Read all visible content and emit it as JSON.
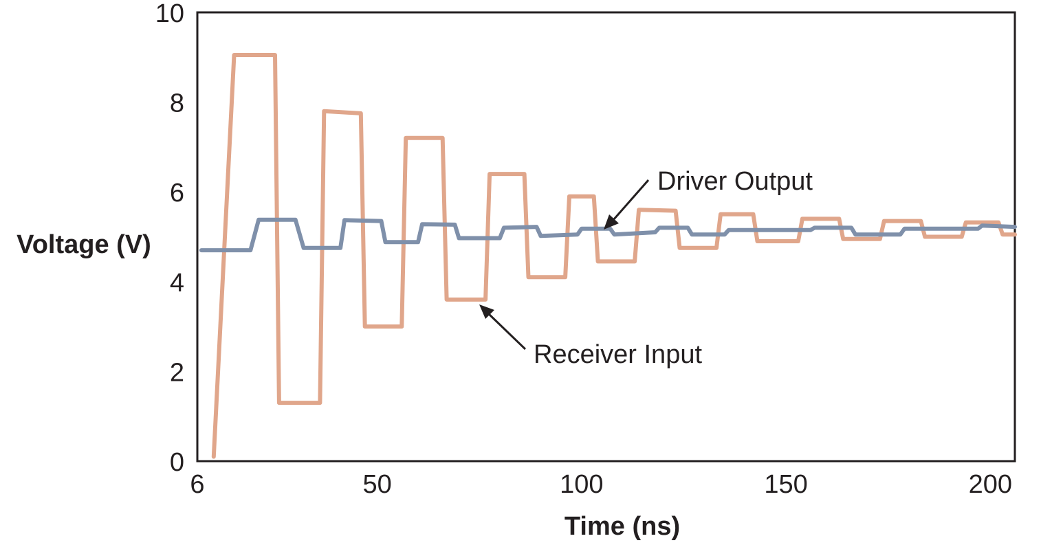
{
  "chart_data": {
    "type": "line",
    "title": "",
    "xlabel": "Time (ns)",
    "ylabel": "Voltage (V)",
    "xlim": [
      6,
      206
    ],
    "ylim": [
      0,
      10
    ],
    "x_ticks": [
      {
        "value": 6,
        "label": "6"
      },
      {
        "value": 50,
        "label": "50"
      },
      {
        "value": 100,
        "label": "100"
      },
      {
        "value": 150,
        "label": "150"
      },
      {
        "value": 200,
        "label": "200"
      }
    ],
    "y_ticks": [
      {
        "value": 0,
        "label": "0"
      },
      {
        "value": 2,
        "label": "2"
      },
      {
        "value": 4,
        "label": "4"
      },
      {
        "value": 6,
        "label": "6"
      },
      {
        "value": 8,
        "label": "8"
      },
      {
        "value": 10,
        "label": "10"
      }
    ],
    "grid": false,
    "legend": "none",
    "series": [
      {
        "name": "Receiver Input",
        "color": "#e0a68b",
        "points": [
          [
            10,
            0.1
          ],
          [
            15,
            9.05
          ],
          [
            25,
            9.05
          ],
          [
            26,
            1.3
          ],
          [
            36,
            1.3
          ],
          [
            37,
            7.8
          ],
          [
            46,
            7.75
          ],
          [
            47,
            3.0
          ],
          [
            56,
            3.0
          ],
          [
            57,
            7.2
          ],
          [
            66,
            7.2
          ],
          [
            67,
            3.6
          ],
          [
            76.5,
            3.6
          ],
          [
            77.5,
            6.4
          ],
          [
            86,
            6.4
          ],
          [
            87,
            4.1
          ],
          [
            96,
            4.1
          ],
          [
            97,
            5.9
          ],
          [
            103,
            5.9
          ],
          [
            104,
            4.45
          ],
          [
            113,
            4.45
          ],
          [
            114,
            5.6
          ],
          [
            123,
            5.58
          ],
          [
            124,
            4.75
          ],
          [
            133,
            4.75
          ],
          [
            134,
            5.5
          ],
          [
            142,
            5.5
          ],
          [
            143,
            4.9
          ],
          [
            153,
            4.9
          ],
          [
            154,
            5.4
          ],
          [
            163,
            5.4
          ],
          [
            164,
            4.95
          ],
          [
            173,
            4.95
          ],
          [
            174,
            5.35
          ],
          [
            183,
            5.35
          ],
          [
            184,
            5.0
          ],
          [
            193,
            5.0
          ],
          [
            194,
            5.32
          ],
          [
            202,
            5.32
          ],
          [
            203,
            5.05
          ],
          [
            206,
            5.05
          ]
        ]
      },
      {
        "name": "Driver Output",
        "color": "#7f90aa",
        "points": [
          [
            7,
            4.7
          ],
          [
            19,
            4.7
          ],
          [
            21,
            5.38
          ],
          [
            30,
            5.38
          ],
          [
            32,
            4.75
          ],
          [
            41,
            4.75
          ],
          [
            42,
            5.37
          ],
          [
            51,
            5.35
          ],
          [
            52,
            4.88
          ],
          [
            60,
            4.88
          ],
          [
            61,
            5.28
          ],
          [
            69,
            5.27
          ],
          [
            70,
            4.97
          ],
          [
            80,
            4.97
          ],
          [
            81,
            5.2
          ],
          [
            89,
            5.22
          ],
          [
            90,
            5.02
          ],
          [
            99,
            5.05
          ],
          [
            100,
            5.18
          ],
          [
            107,
            5.18
          ],
          [
            108,
            5.05
          ],
          [
            118,
            5.1
          ],
          [
            119,
            5.2
          ],
          [
            126,
            5.2
          ],
          [
            127,
            5.05
          ],
          [
            135,
            5.05
          ],
          [
            136,
            5.15
          ],
          [
            146,
            5.15
          ],
          [
            156,
            5.15
          ],
          [
            157,
            5.2
          ],
          [
            166,
            5.2
          ],
          [
            167,
            5.05
          ],
          [
            178,
            5.05
          ],
          [
            179,
            5.18
          ],
          [
            191,
            5.18
          ],
          [
            197,
            5.18
          ],
          [
            198,
            5.25
          ],
          [
            206,
            5.22
          ]
        ]
      }
    ],
    "annotations": [
      {
        "text": "Driver Output",
        "series": "Driver Output",
        "x": 102,
        "y": 5.15
      },
      {
        "text": "Receiver Input",
        "series": "Receiver Input",
        "x": 76,
        "y": 3.6
      }
    ]
  },
  "colors": {
    "axis": "#231f20",
    "text": "#231f20",
    "receiver": "#e0a68b",
    "driver": "#7f90aa"
  }
}
